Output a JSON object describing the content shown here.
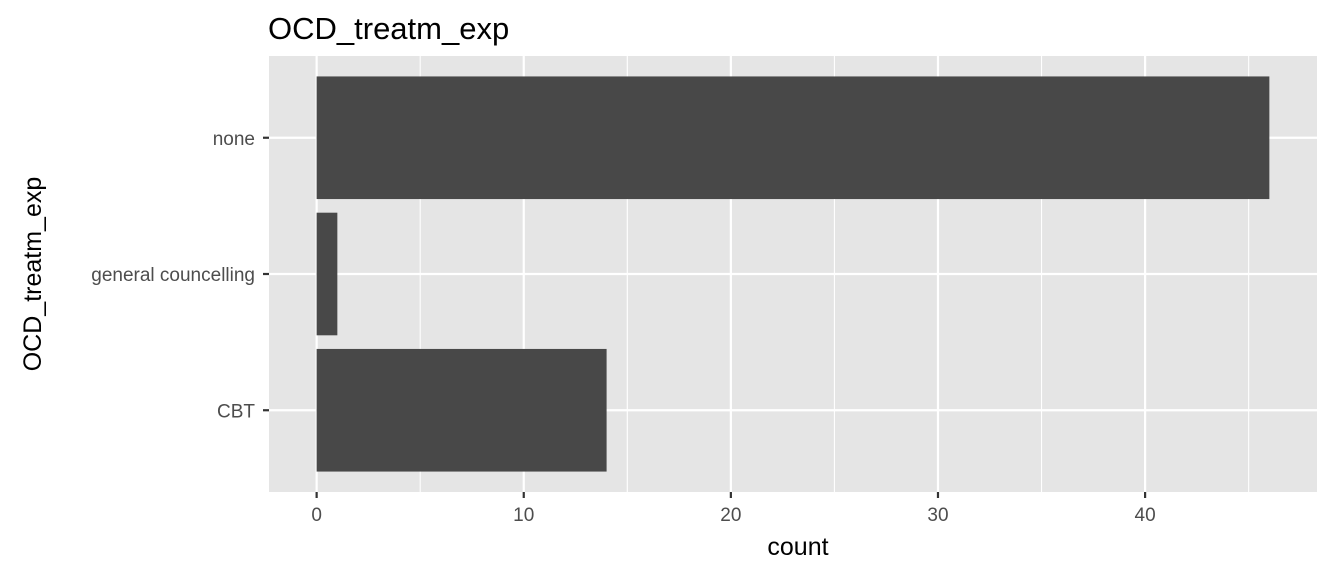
{
  "chart_data": {
    "type": "bar",
    "orientation": "horizontal",
    "title": "OCD_treatm_exp",
    "xlabel": "count",
    "ylabel": "OCD_treatm_exp",
    "categories": [
      "none",
      "general councelling",
      "CBT"
    ],
    "values": [
      46,
      1,
      14
    ],
    "xlim": [
      -2.3,
      48.3
    ],
    "xticks": [
      0,
      10,
      20,
      30,
      40
    ],
    "xtick_labels": [
      "0",
      "10",
      "20",
      "30",
      "40"
    ],
    "grid": true,
    "legend": "none",
    "colors": {
      "bar": "#484848",
      "panel": "#e5e5e5",
      "grid": "#ffffff",
      "tick_text": "#4d4d4d",
      "title_text": "#000000"
    }
  }
}
